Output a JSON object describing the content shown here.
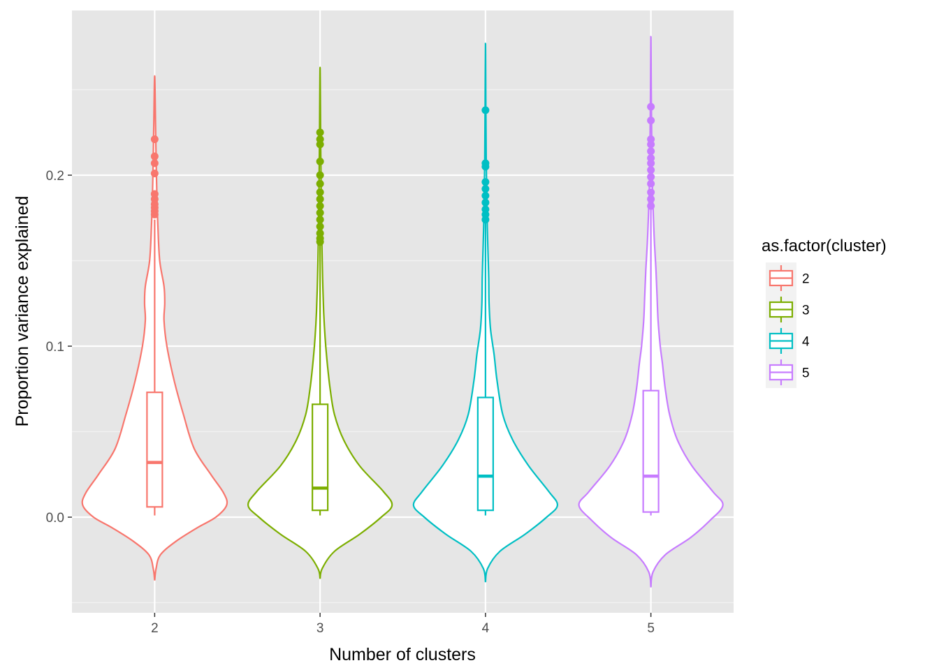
{
  "chart_data": {
    "type": "violin",
    "xlabel": "Number of clusters",
    "ylabel": "Proportion variance explained",
    "ylim": [
      -0.05,
      0.3
    ],
    "yticks": [
      {
        "value": 0.0,
        "label": "0.0"
      },
      {
        "value": 0.1,
        "label": "0.1"
      },
      {
        "value": 0.2,
        "label": "0.2"
      }
    ],
    "grid": true,
    "legend": {
      "title": "as.factor(cluster)",
      "placement": "right",
      "entries": [
        {
          "label": "2",
          "color": "#F8766D"
        },
        {
          "label": "3",
          "color": "#7CAE00"
        },
        {
          "label": "4",
          "color": "#00BFC4"
        },
        {
          "label": "5",
          "color": "#C77CFF"
        }
      ]
    },
    "categories": [
      "2",
      "3",
      "4",
      "5"
    ],
    "series": [
      {
        "category": "2",
        "color": "#F8766D",
        "violin_profile": [
          [
            -0.037,
            0.0
          ],
          [
            -0.03,
            0.02
          ],
          [
            -0.022,
            0.08
          ],
          [
            -0.014,
            0.3
          ],
          [
            -0.006,
            0.6
          ],
          [
            0.0,
            0.85
          ],
          [
            0.007,
            1.0
          ],
          [
            0.014,
            0.96
          ],
          [
            0.025,
            0.78
          ],
          [
            0.04,
            0.55
          ],
          [
            0.06,
            0.4
          ],
          [
            0.08,
            0.27
          ],
          [
            0.1,
            0.17
          ],
          [
            0.115,
            0.13
          ],
          [
            0.125,
            0.14
          ],
          [
            0.135,
            0.13
          ],
          [
            0.15,
            0.07
          ],
          [
            0.17,
            0.045
          ],
          [
            0.19,
            0.03
          ],
          [
            0.21,
            0.02
          ],
          [
            0.23,
            0.012
          ],
          [
            0.258,
            0.0
          ]
        ],
        "box": {
          "q1": 0.006,
          "median": 0.032,
          "q3": 0.073,
          "whisker_low": 0.001,
          "whisker_high": 0.174
        },
        "outliers": [
          0.177,
          0.179,
          0.181,
          0.183,
          0.186,
          0.189,
          0.201,
          0.207,
          0.211,
          0.221
        ]
      },
      {
        "category": "3",
        "color": "#7CAE00",
        "violin_profile": [
          [
            -0.036,
            0.0
          ],
          [
            -0.03,
            0.03
          ],
          [
            -0.02,
            0.2
          ],
          [
            -0.01,
            0.55
          ],
          [
            0.0,
            0.85
          ],
          [
            0.007,
            1.0
          ],
          [
            0.015,
            0.88
          ],
          [
            0.03,
            0.55
          ],
          [
            0.045,
            0.33
          ],
          [
            0.06,
            0.2
          ],
          [
            0.075,
            0.14
          ],
          [
            0.09,
            0.1
          ],
          [
            0.105,
            0.07
          ],
          [
            0.12,
            0.05
          ],
          [
            0.14,
            0.035
          ],
          [
            0.16,
            0.025
          ],
          [
            0.18,
            0.018
          ],
          [
            0.2,
            0.013
          ],
          [
            0.22,
            0.008
          ],
          [
            0.24,
            0.005
          ],
          [
            0.263,
            0.0
          ]
        ],
        "box": {
          "q1": 0.004,
          "median": 0.017,
          "q3": 0.066,
          "whisker_low": 0.001,
          "whisker_high": 0.16
        },
        "outliers": [
          0.161,
          0.163,
          0.166,
          0.17,
          0.174,
          0.178,
          0.182,
          0.186,
          0.19,
          0.195,
          0.2,
          0.208,
          0.218,
          0.221,
          0.225
        ]
      },
      {
        "category": "4",
        "color": "#00BFC4",
        "violin_profile": [
          [
            -0.038,
            0.0
          ],
          [
            -0.03,
            0.03
          ],
          [
            -0.02,
            0.2
          ],
          [
            -0.01,
            0.55
          ],
          [
            0.0,
            0.85
          ],
          [
            0.007,
            1.0
          ],
          [
            0.015,
            0.88
          ],
          [
            0.03,
            0.6
          ],
          [
            0.045,
            0.38
          ],
          [
            0.06,
            0.24
          ],
          [
            0.08,
            0.16
          ],
          [
            0.095,
            0.12
          ],
          [
            0.11,
            0.07
          ],
          [
            0.125,
            0.05
          ],
          [
            0.14,
            0.045
          ],
          [
            0.155,
            0.035
          ],
          [
            0.17,
            0.025
          ],
          [
            0.19,
            0.017
          ],
          [
            0.21,
            0.01
          ],
          [
            0.24,
            0.005
          ],
          [
            0.277,
            0.0
          ]
        ],
        "box": {
          "q1": 0.004,
          "median": 0.024,
          "q3": 0.07,
          "whisker_low": 0.001,
          "whisker_high": 0.172
        },
        "outliers": [
          0.174,
          0.177,
          0.18,
          0.184,
          0.188,
          0.192,
          0.196,
          0.205,
          0.207,
          0.238
        ]
      },
      {
        "category": "5",
        "color": "#C77CFF",
        "violin_profile": [
          [
            -0.041,
            0.0
          ],
          [
            -0.032,
            0.03
          ],
          [
            -0.022,
            0.2
          ],
          [
            -0.012,
            0.55
          ],
          [
            -0.002,
            0.82
          ],
          [
            0.007,
            1.0
          ],
          [
            0.015,
            0.86
          ],
          [
            0.03,
            0.57
          ],
          [
            0.045,
            0.37
          ],
          [
            0.06,
            0.26
          ],
          [
            0.075,
            0.2
          ],
          [
            0.09,
            0.16
          ],
          [
            0.1,
            0.13
          ],
          [
            0.115,
            0.1
          ],
          [
            0.13,
            0.085
          ],
          [
            0.145,
            0.07
          ],
          [
            0.16,
            0.05
          ],
          [
            0.175,
            0.035
          ],
          [
            0.195,
            0.02
          ],
          [
            0.22,
            0.012
          ],
          [
            0.25,
            0.005
          ],
          [
            0.281,
            0.0
          ]
        ],
        "box": {
          "q1": 0.003,
          "median": 0.024,
          "q3": 0.074,
          "whisker_low": 0.001,
          "whisker_high": 0.18
        },
        "outliers": [
          0.182,
          0.186,
          0.19,
          0.195,
          0.199,
          0.203,
          0.207,
          0.21,
          0.214,
          0.218,
          0.221,
          0.232,
          0.24
        ]
      }
    ]
  }
}
